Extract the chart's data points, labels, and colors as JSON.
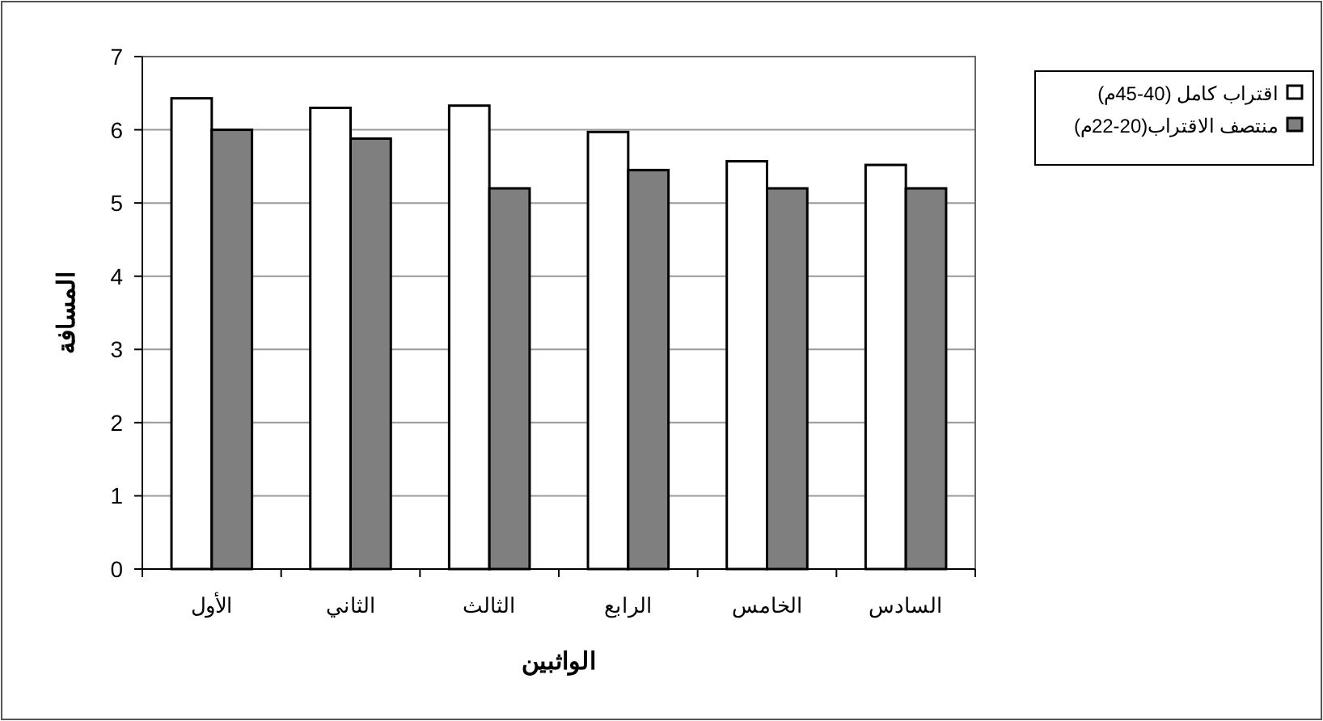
{
  "chart_data": {
    "type": "bar",
    "xlabel": "الواثبين",
    "ylabel": "المسافة",
    "categories": [
      "الأول",
      "الثاني",
      "الثالث",
      "الرابع",
      "الخامس",
      "السادس"
    ],
    "series": [
      {
        "name": "اقتراب كامل (40-45م)",
        "color": "#ffffff",
        "values": [
          6.43,
          6.3,
          6.33,
          5.97,
          5.57,
          5.52
        ]
      },
      {
        "name": "منتصف الاقتراب(20-22م)",
        "color": "#7f7f7f",
        "values": [
          6.0,
          5.88,
          5.2,
          5.45,
          5.2,
          5.2
        ]
      }
    ],
    "ylim": [
      0,
      7
    ],
    "yticks": [
      0,
      1,
      2,
      3,
      4,
      5,
      6,
      7
    ],
    "grid": "y",
    "legend": "right"
  }
}
